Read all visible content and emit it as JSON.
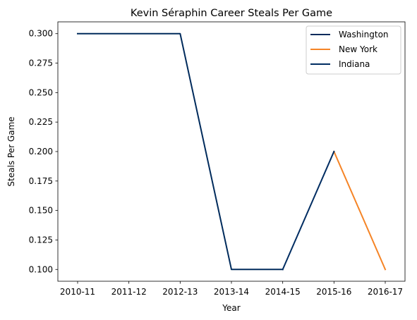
{
  "chart_data": {
    "type": "line",
    "title": "Kevin Séraphin Career Steals Per Game",
    "xlabel": "Year",
    "ylabel": "Steals Per Game",
    "categories": [
      "2010-11",
      "2011-12",
      "2012-13",
      "2013-14",
      "2014-15",
      "2015-16",
      "2016-17"
    ],
    "yticks": [
      "0.100",
      "0.125",
      "0.150",
      "0.175",
      "0.200",
      "0.225",
      "0.250",
      "0.275",
      "0.300"
    ],
    "ylim": [
      0.09,
      0.31
    ],
    "grid": false,
    "legend_position": "top-right",
    "series": [
      {
        "name": "Washington",
        "color": "#002B5C",
        "points": [
          {
            "x": "2010-11",
            "y": 0.3
          },
          {
            "x": "2011-12",
            "y": 0.3
          },
          {
            "x": "2012-13",
            "y": 0.3
          },
          {
            "x": "2013-14",
            "y": 0.1
          },
          {
            "x": "2014-15",
            "y": 0.1
          }
        ]
      },
      {
        "name": "New York",
        "color": "#F58426",
        "points": [
          {
            "x": "2015-16",
            "y": 0.2
          },
          {
            "x": "2016-17",
            "y": 0.1
          }
        ]
      },
      {
        "name": "Indiana",
        "color": "#002D62",
        "points": [
          {
            "x": "2014-15",
            "y": 0.1
          },
          {
            "x": "2015-16",
            "y": 0.2
          }
        ]
      }
    ]
  }
}
